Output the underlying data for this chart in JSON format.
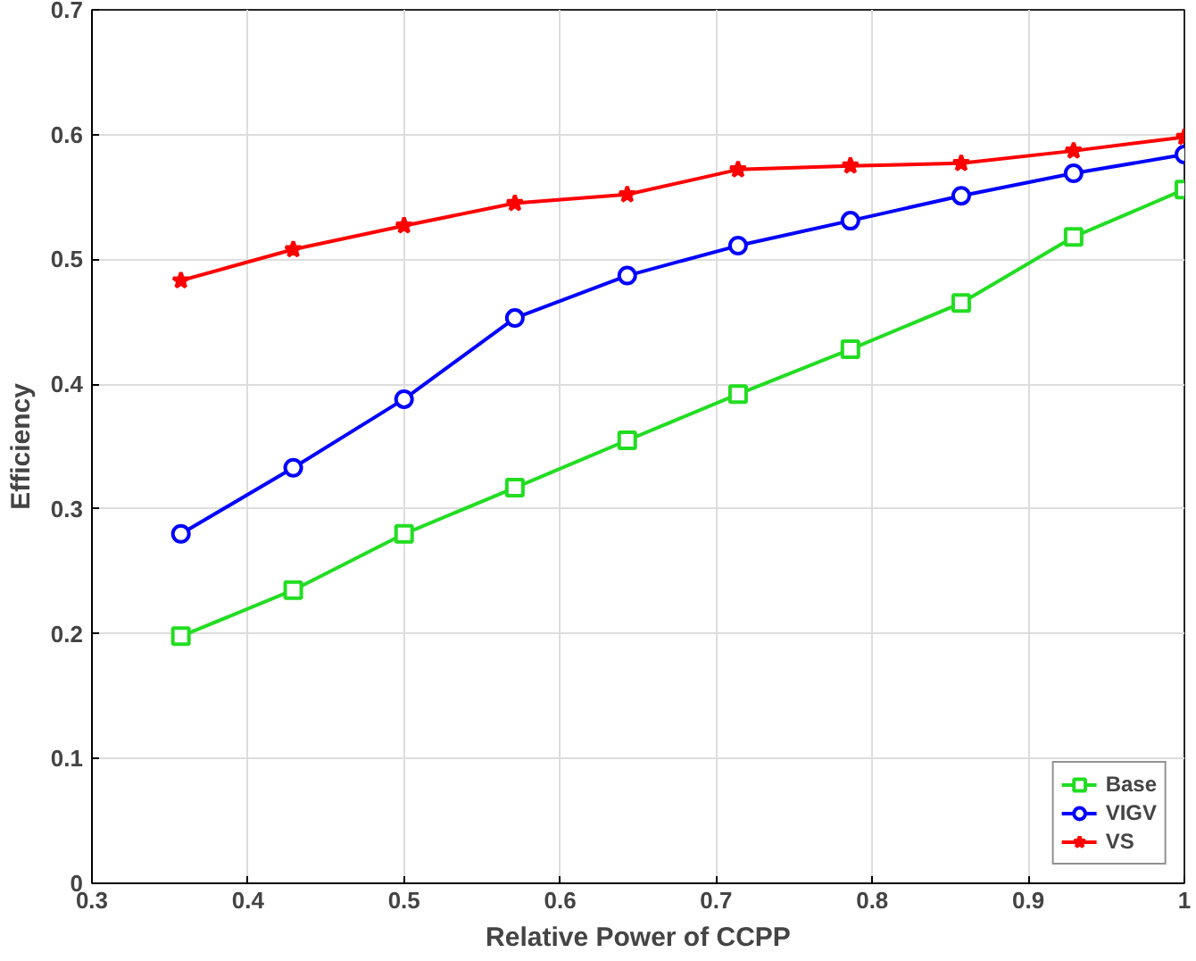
{
  "chart_data": {
    "type": "line",
    "xlabel": "Relative Power of CCPP",
    "ylabel": "Efficiency",
    "x": [
      0.357,
      0.429,
      0.5,
      0.571,
      0.643,
      0.714,
      0.786,
      0.857,
      0.929,
      1.0
    ],
    "series": [
      {
        "name": "Base",
        "color": "#22dd22",
        "marker": "square",
        "values": [
          0.198,
          0.235,
          0.28,
          0.317,
          0.355,
          0.392,
          0.428,
          0.465,
          0.518,
          0.556
        ]
      },
      {
        "name": "VIGV",
        "color": "#0000ff",
        "marker": "circle",
        "values": [
          0.28,
          0.333,
          0.388,
          0.453,
          0.487,
          0.511,
          0.531,
          0.551,
          0.569,
          0.584
        ]
      },
      {
        "name": "VS",
        "color": "#ff0000",
        "marker": "star",
        "values": [
          0.483,
          0.508,
          0.527,
          0.545,
          0.552,
          0.572,
          0.575,
          0.577,
          0.587,
          0.598
        ]
      }
    ],
    "xlim": [
      0.3,
      1.0
    ],
    "xticks": [
      0.3,
      0.4,
      0.5,
      0.6,
      0.7,
      0.8,
      0.9,
      1
    ],
    "ylim": [
      0,
      0.7
    ],
    "yticks": [
      0,
      0.1,
      0.2,
      0.3,
      0.4,
      0.5,
      0.6,
      0.7
    ],
    "grid": true,
    "legend": "bottom right",
    "line_style": "solid"
  }
}
